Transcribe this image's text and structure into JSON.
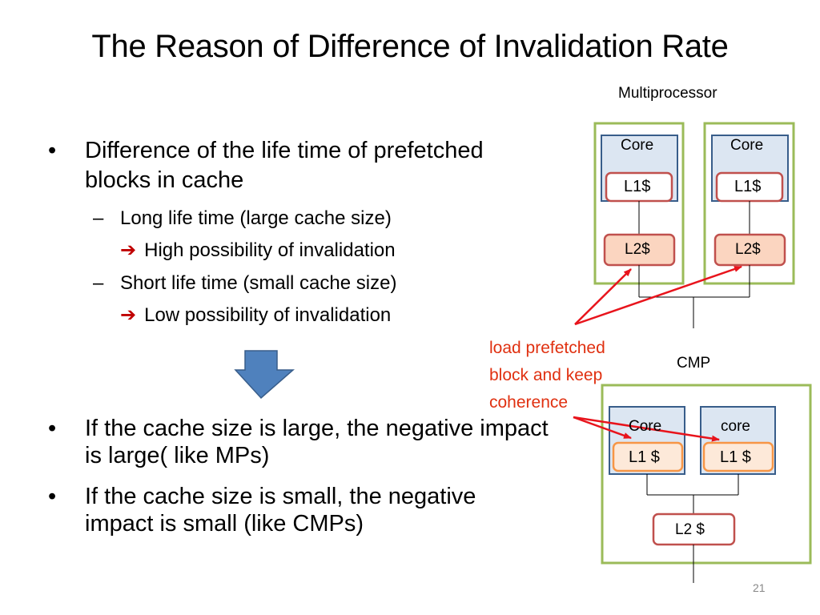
{
  "slide": {
    "title": "The Reason of Difference of Invalidation Rate",
    "number": "21"
  },
  "bullets": {
    "first": {
      "text": "Difference of the life time of prefetched blocks in cache",
      "subitems": [
        {
          "text": "Long life time (large cache size)",
          "consequence": "High possibility of invalidation"
        },
        {
          "text": "Short life time (small cache size)",
          "consequence": "Low possibility of invalidation"
        }
      ]
    },
    "second": "If the cache size is large, the negative impact is large( like MPs)",
    "third": "If the cache size is small, the negative impact is small (like CMPs)"
  },
  "diagram": {
    "multiprocessor": {
      "label": "Multiprocessor",
      "nodes": [
        {
          "core": "Core",
          "l1": "L1$",
          "l2": "L2$"
        },
        {
          "core": "Core",
          "l1": "L1$",
          "l2": "L2$"
        }
      ]
    },
    "cmp": {
      "label": "CMP",
      "cores": [
        {
          "core": "Core",
          "l1": "L1 $"
        },
        {
          "core": "core",
          "l1": "L1 $"
        }
      ],
      "l2": "L2 $"
    },
    "annotation": "load prefetched block and keep coherence",
    "colors": {
      "node_border": "#9bbb59",
      "core_fill": "#dce6f2",
      "core_border": "#385d8a",
      "cache_border": "#c0504d",
      "l2_fill": "#fbd5c0",
      "cmp_l1_fill": "#fde9d9",
      "cmp_l1_border": "#f79646",
      "arrow": "#e8141c",
      "down_arrow": "#4f81bd"
    }
  }
}
